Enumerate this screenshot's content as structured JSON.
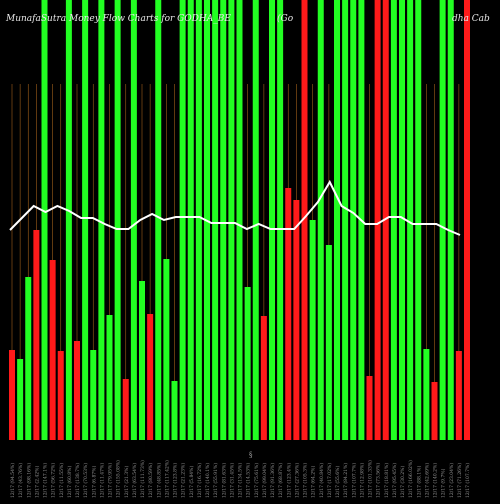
{
  "chart_data": {
    "type": "bar",
    "title_parts": [
      "MunafaSutra  Money Flow  Charts for GODHA_BE",
      "(Go",
      "dha  Cab"
    ],
    "axis_marker": "§",
    "ylim": [
      0,
      340
    ],
    "grid": true,
    "colors": {
      "up": "#22ff22",
      "down": "#ff1a1a",
      "line": "#ffffff",
      "grid": "#a0601a",
      "background": "#000000"
    },
    "categories": [
      "12/17 (94.54%)",
      "12/17 (43.76%)",
      "12/17 (98.16%)",
      "12/17 (2.42%)",
      "12/17 (147.1%)",
      "12/17 (56.72%)",
      "12/17 (11.55%)",
      "12/17 (60.8%)",
      "12/17 (138.7%)",
      "12/17 (70.53%)",
      "12/17 (6.87%)",
      "12/17 (11.47%)",
      "12/17 (79.95%)",
      "12/17 (155.08%)",
      "12/17 (21.3%)",
      "12/17 (63.54%)",
      "12/17 (111.73%)",
      "12/17 (80.59%)",
      "12/17 (48.85%)",
      "12/17 (117.42%)",
      "12/17 (123.8%)",
      "12/17 (21.23%)",
      "12/17 (5.84%)",
      "12/17 (16.72%)",
      "12/17 (140.1%)",
      "12/17 (55.91%)",
      "12/17 (81.63%)",
      "12/17 (31.45%)",
      "12/17 (134.5%)",
      "12/17 (14.53%)",
      "12/17 (75.61%)",
      "12/17 (99.04%)",
      "12/17 (91.36%)",
      "12/17 (68.87%)",
      "12/17 (123.4%)",
      "12/17 (27.36%)",
      "12/17 (105.3%)",
      "12/17 (64.2%)",
      "12/17 (40.84%)",
      "12/17 (17.02%)",
      "12/17 (55.6%)",
      "12/17 (84.21%)",
      "12/17 (107.7%)",
      "12/17 (12.98%)",
      "12/17 (101.33%)",
      "12/17 (73.56%)",
      "12/17 (18.81%)",
      "12/17 (95.45%)",
      "12/17 (30.2%)",
      "12/17 (166.02%)",
      "12/17 (88.1%)",
      "12/17 (42.69%)",
      "12/17 (140.2%)",
      "12/17 (9.7%)",
      "12/17 (23.04%)",
      "12/17 (71.26%)",
      "12/17 (107.7%)"
    ],
    "bar_values": [
      90,
      81,
      163,
      210,
      340,
      180,
      89,
      340,
      99,
      340,
      90,
      340,
      125,
      340,
      61,
      340,
      159,
      126,
      340,
      181,
      59,
      340,
      340,
      340,
      340,
      340,
      340,
      340,
      340,
      153,
      340,
      124,
      340,
      340,
      252,
      240,
      340,
      220,
      340,
      195,
      340,
      340,
      340,
      340,
      64,
      340,
      340,
      340,
      340,
      340,
      340,
      91,
      58,
      340,
      340,
      89,
      340
    ],
    "bar_colors": [
      "red",
      "green",
      "green",
      "red",
      "green",
      "red",
      "red",
      "green",
      "red",
      "green",
      "green",
      "green",
      "green",
      "green",
      "red",
      "green",
      "green",
      "red",
      "green",
      "green",
      "green",
      "green",
      "green",
      "green",
      "green",
      "green",
      "green",
      "green",
      "green",
      "green",
      "green",
      "red",
      "green",
      "green",
      "red",
      "red",
      "red",
      "green",
      "green",
      "green",
      "green",
      "green",
      "green",
      "green",
      "red",
      "red",
      "red",
      "green",
      "green",
      "green",
      "green",
      "green",
      "red",
      "green",
      "green",
      "red",
      "red"
    ],
    "line_values": [
      210,
      222,
      234,
      228,
      234,
      229,
      222,
      222,
      216,
      211,
      211,
      220,
      226,
      220,
      223,
      223,
      223,
      217,
      217,
      217,
      211,
      216,
      211,
      211,
      211,
      224,
      238,
      258,
      234,
      227,
      216,
      216,
      223,
      223,
      216,
      216,
      216,
      210,
      205
    ]
  }
}
